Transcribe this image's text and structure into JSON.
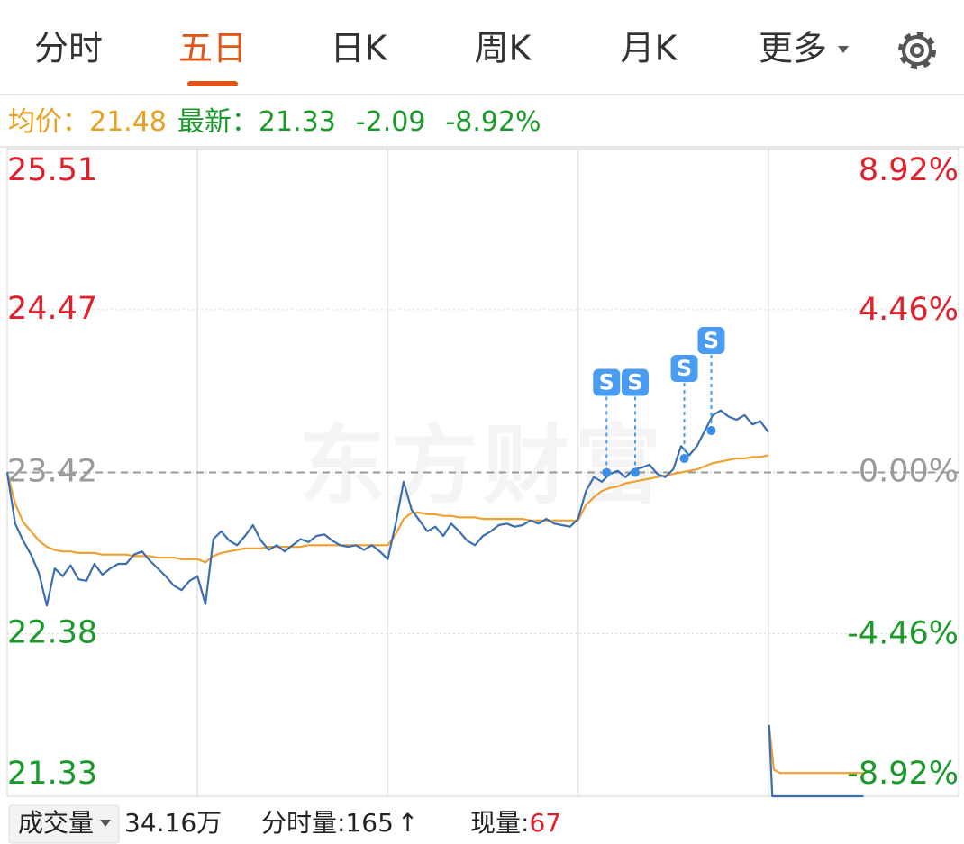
{
  "tabs": {
    "items": [
      "分时",
      "五日",
      "日K",
      "周K",
      "月K",
      "更多"
    ],
    "active": 1
  },
  "info": {
    "avg_label": "均价：",
    "avg_value": "21.48",
    "latest_label": "最新：",
    "latest_value": "21.33",
    "change": "-2.09",
    "change_pct": "-8.92%"
  },
  "chart_data": {
    "type": "line",
    "watermark": "东方财富",
    "xlim": [
      0,
      1200
    ],
    "xticks": [
      240,
      480,
      720,
      960
    ],
    "ylim": [
      21.33,
      25.51
    ],
    "yticks": [
      25.51,
      24.47,
      23.42,
      22.38,
      21.33
    ],
    "y2lim": [
      -8.92,
      8.92
    ],
    "y2ticks": [
      {
        "value": 8.92,
        "label": "8.92%"
      },
      {
        "value": 4.46,
        "label": "4.46%"
      },
      {
        "value": 0,
        "label": "0.00%"
      },
      {
        "value": -4.46,
        "label": "-4.46%"
      },
      {
        "value": -8.92,
        "label": "-8.92%"
      }
    ],
    "baseline": 23.42,
    "up_color": "#e0202a",
    "down_color": "#1a9a2a",
    "flat_color": "#9a9a9a",
    "series": [
      {
        "color": "#3b6eb0",
        "x": [
          0,
          10,
          20,
          30,
          40,
          50,
          60,
          70,
          80,
          90,
          100,
          110,
          120,
          130,
          140,
          150,
          160,
          170,
          180,
          190,
          200,
          210,
          220,
          230,
          240,
          250,
          260,
          270,
          280,
          290,
          300,
          310,
          320,
          330,
          340,
          350,
          360,
          370,
          380,
          390,
          400,
          410,
          420,
          430,
          440,
          450,
          460,
          470,
          480,
          490,
          500,
          510,
          520,
          530,
          540,
          550,
          560,
          570,
          580,
          590,
          600,
          610,
          620,
          630,
          640,
          650,
          660,
          670,
          680,
          690,
          700,
          710,
          720,
          730,
          740,
          750,
          760,
          770,
          780,
          790,
          800,
          810,
          820,
          830,
          840,
          850,
          860,
          870,
          880,
          890,
          900,
          910,
          920,
          930,
          940,
          950,
          960,
          960.5,
          961,
          965,
          1080
        ],
        "values": [
          23.42,
          23.09,
          22.98,
          22.89,
          22.77,
          22.56,
          22.8,
          22.75,
          22.82,
          22.73,
          22.72,
          22.83,
          22.76,
          22.8,
          22.83,
          22.83,
          22.89,
          22.91,
          22.85,
          22.8,
          22.75,
          22.69,
          22.66,
          22.72,
          22.75,
          22.57,
          22.99,
          23.04,
          22.98,
          22.95,
          23.01,
          23.08,
          22.98,
          22.92,
          22.95,
          22.91,
          22.95,
          22.99,
          22.97,
          23.01,
          23.02,
          22.98,
          22.95,
          22.94,
          22.95,
          22.92,
          22.95,
          22.91,
          22.86,
          23.09,
          23.36,
          23.18,
          23.11,
          23.04,
          23.07,
          23.01,
          23.09,
          23.04,
          22.98,
          22.95,
          23.01,
          23.04,
          23.08,
          23.09,
          23.07,
          23.08,
          23.11,
          23.09,
          23.12,
          23.09,
          23.08,
          23.07,
          23.12,
          23.3,
          23.39,
          23.36,
          23.41,
          23.43,
          23.39,
          23.44,
          23.45,
          23.47,
          23.41,
          23.39,
          23.44,
          23.59,
          23.53,
          23.59,
          23.69,
          23.79,
          23.82,
          23.78,
          23.76,
          23.79,
          23.73,
          23.75,
          23.68,
          null,
          21.79,
          21.33,
          21.33
        ]
      },
      {
        "color": "#f0a030",
        "x": [
          0,
          10,
          20,
          30,
          40,
          50,
          60,
          70,
          80,
          90,
          100,
          110,
          120,
          130,
          140,
          150,
          160,
          170,
          180,
          190,
          200,
          210,
          220,
          230,
          240,
          250,
          260,
          270,
          280,
          290,
          300,
          310,
          320,
          330,
          340,
          350,
          360,
          370,
          380,
          390,
          400,
          410,
          420,
          430,
          440,
          450,
          460,
          470,
          480,
          490,
          500,
          510,
          520,
          530,
          540,
          550,
          560,
          570,
          580,
          590,
          600,
          610,
          620,
          630,
          640,
          650,
          660,
          670,
          680,
          690,
          700,
          710,
          720,
          730,
          740,
          750,
          760,
          770,
          780,
          790,
          800,
          810,
          820,
          830,
          840,
          850,
          860,
          870,
          880,
          890,
          900,
          910,
          920,
          930,
          940,
          950,
          960,
          960.5,
          961,
          967,
          975,
          1080
        ],
        "values": [
          23.42,
          23.22,
          23.1,
          23.04,
          22.98,
          22.94,
          22.92,
          22.91,
          22.91,
          22.9,
          22.9,
          22.9,
          22.89,
          22.89,
          22.89,
          22.89,
          22.88,
          22.88,
          22.88,
          22.87,
          22.87,
          22.87,
          22.86,
          22.86,
          22.86,
          22.84,
          22.88,
          22.9,
          22.91,
          22.92,
          22.93,
          22.93,
          22.93,
          22.94,
          22.94,
          22.94,
          22.94,
          22.94,
          22.95,
          22.95,
          22.95,
          22.95,
          22.95,
          22.95,
          22.95,
          22.95,
          22.95,
          22.95,
          22.95,
          23.02,
          23.12,
          23.16,
          23.16,
          23.15,
          23.15,
          23.14,
          23.14,
          23.13,
          23.13,
          23.13,
          23.12,
          23.12,
          23.12,
          23.12,
          23.12,
          23.12,
          23.11,
          23.11,
          23.11,
          23.11,
          23.11,
          23.11,
          23.11,
          23.21,
          23.26,
          23.3,
          23.32,
          23.33,
          23.35,
          23.36,
          23.37,
          23.38,
          23.39,
          23.4,
          23.41,
          23.42,
          23.43,
          23.44,
          23.46,
          23.48,
          23.49,
          23.5,
          23.51,
          23.51,
          23.52,
          23.52,
          23.53,
          null,
          21.79,
          21.5,
          21.48,
          21.48
        ]
      }
    ],
    "markers": [
      {
        "x": 756,
        "value": 23.42,
        "label": "S"
      },
      {
        "x": 792,
        "value": 23.42,
        "label": "S"
      },
      {
        "x": 854,
        "value": 23.51,
        "label": "S"
      },
      {
        "x": 888,
        "value": 23.69,
        "label": "S"
      }
    ]
  },
  "footer": {
    "volume_selector": "成交量",
    "volume": "34.16万",
    "tick_volume_label": "分时量:",
    "tick_volume": "165",
    "arrow": "↑",
    "current_label": "现量:",
    "current_volume": "67"
  }
}
